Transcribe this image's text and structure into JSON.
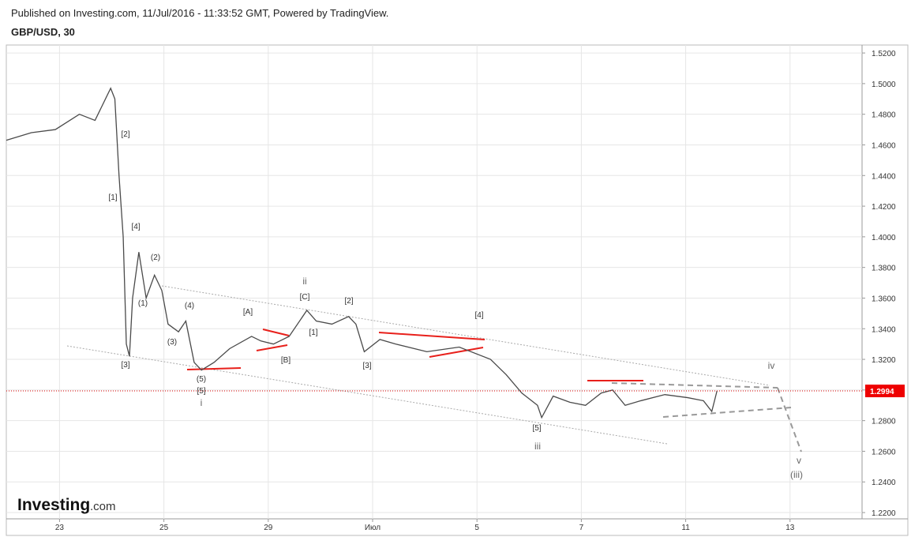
{
  "header": {
    "published": "Published on Investing.com, 11/Jul/2016 - 11:33:52 GMT, Powered by TradingView.",
    "symbol": "GBP/USD, 30"
  },
  "logo": {
    "brand": "Investing",
    "suffix": ".com"
  },
  "chart_data": {
    "type": "line",
    "color": "#4a4a4a",
    "x": [
      -0.51,
      -0.27,
      -0.04,
      0.19,
      0.34,
      0.49,
      0.53,
      0.57,
      0.61,
      0.64,
      0.67,
      0.7,
      0.76,
      0.83,
      0.91,
      0.98,
      1.04,
      1.14,
      1.21,
      1.29,
      1.36,
      1.48,
      1.63,
      1.84,
      1.93,
      2.05,
      2.2,
      2.37,
      2.46,
      2.61,
      2.77,
      2.84,
      2.92,
      3.07,
      3.22,
      3.52,
      3.83,
      4.13,
      4.28,
      4.43,
      4.58,
      4.62,
      4.73,
      4.89,
      5.04,
      5.19,
      5.3,
      5.42,
      5.57,
      5.8,
      6.02,
      6.17,
      6.25,
      6.3
    ],
    "values": [
      1.463,
      1.468,
      1.47,
      1.48,
      1.476,
      1.497,
      1.49,
      1.44,
      1.4,
      1.33,
      1.322,
      1.36,
      1.39,
      1.36,
      1.375,
      1.365,
      1.343,
      1.338,
      1.345,
      1.318,
      1.313,
      1.318,
      1.327,
      1.335,
      1.332,
      1.33,
      1.335,
      1.352,
      1.345,
      1.343,
      1.348,
      1.343,
      1.325,
      1.333,
      1.33,
      1.325,
      1.328,
      1.32,
      1.31,
      1.298,
      1.29,
      1.282,
      1.296,
      1.292,
      1.29,
      1.298,
      1.3,
      1.29,
      1.293,
      1.297,
      1.295,
      1.293,
      1.286,
      1.2994
    ],
    "xlim": [
      -0.51,
      7.69
    ],
    "xticks": [
      {
        "value": 0,
        "label": "23"
      },
      {
        "value": 1,
        "label": "25"
      },
      {
        "value": 2,
        "label": "29"
      },
      {
        "value": 3,
        "label": "Июл"
      },
      {
        "value": 4,
        "label": "5"
      },
      {
        "value": 5,
        "label": "7"
      },
      {
        "value": 6,
        "label": "11"
      },
      {
        "value": 7,
        "label": "13"
      }
    ],
    "ylim": [
      1.2159,
      1.5252
    ],
    "yticks": [
      {
        "value": 1.22,
        "label": "1.2200"
      },
      {
        "value": 1.24,
        "label": "1.2400"
      },
      {
        "value": 1.26,
        "label": "1.2600"
      },
      {
        "value": 1.28,
        "label": "1.2800"
      },
      {
        "value": 1.3,
        "label": "1.3000"
      },
      {
        "value": 1.32,
        "label": "1.3200"
      },
      {
        "value": 1.34,
        "label": "1.3400"
      },
      {
        "value": 1.36,
        "label": "1.3600"
      },
      {
        "value": 1.38,
        "label": "1.3800"
      },
      {
        "value": 1.4,
        "label": "1.4000"
      },
      {
        "value": 1.42,
        "label": "1.4200"
      },
      {
        "value": 1.44,
        "label": "1.4400"
      },
      {
        "value": 1.46,
        "label": "1.4600"
      },
      {
        "value": 1.48,
        "label": "1.4800"
      },
      {
        "value": 1.5,
        "label": "1.5000"
      },
      {
        "value": 1.52,
        "label": "1.5200"
      }
    ],
    "grid": true,
    "last_price": 1.2994,
    "annotations": [
      "[2]",
      "[1]",
      "[4]",
      "(2)",
      "(1)",
      "(4)",
      "(3)",
      "[3]",
      "(5)",
      "[5]",
      "i",
      "[A]",
      "[B]",
      "ii",
      "[C]",
      "[1]",
      "[2]",
      "[3]",
      "[4]",
      "[5]",
      "iii",
      "iv",
      "v",
      "(iii)"
    ]
  }
}
